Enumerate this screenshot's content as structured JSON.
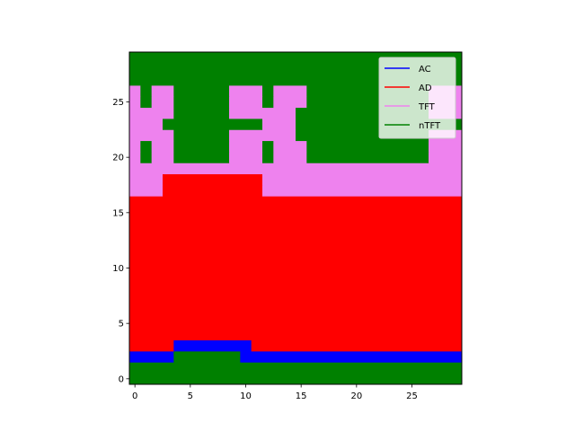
{
  "chart_data": {
    "type": "heatmap",
    "title": "",
    "xlabel": "",
    "ylabel": "",
    "xlim": [
      -0.5,
      29.5
    ],
    "ylim": [
      -0.5,
      29.5
    ],
    "grid": false,
    "legend_position": "top-right",
    "x_ticks": [
      0,
      5,
      10,
      15,
      20,
      25
    ],
    "y_ticks": [
      0,
      5,
      10,
      15,
      20,
      25
    ],
    "legend": [
      {
        "label": "AC",
        "color": "#0000ff"
      },
      {
        "label": "AD",
        "color": "#ff0000"
      },
      {
        "label": "TFT",
        "color": "#ee82ee"
      },
      {
        "label": "nTFT",
        "color": "#008000"
      }
    ],
    "class_colors": {
      "AC": "#0000ff",
      "AD": "#ff0000",
      "TFT": "#ee82ee",
      "nTFT": "#008000"
    },
    "rows": [
      {
        "y": 0,
        "runs": [
          [
            "nTFT",
            30
          ]
        ]
      },
      {
        "y": 1,
        "runs": [
          [
            "nTFT",
            30
          ]
        ]
      },
      {
        "y": 2,
        "runs": [
          [
            "AC",
            4
          ],
          [
            "nTFT",
            6
          ],
          [
            "AC",
            20
          ]
        ]
      },
      {
        "y": 3,
        "runs": [
          [
            "AD",
            4
          ],
          [
            "AC",
            7
          ],
          [
            "AD",
            19
          ]
        ]
      },
      {
        "y": 4,
        "runs": [
          [
            "AD",
            30
          ]
        ]
      },
      {
        "y": 5,
        "runs": [
          [
            "AD",
            30
          ]
        ]
      },
      {
        "y": 6,
        "runs": [
          [
            "AD",
            30
          ]
        ]
      },
      {
        "y": 7,
        "runs": [
          [
            "AD",
            30
          ]
        ]
      },
      {
        "y": 8,
        "runs": [
          [
            "AD",
            30
          ]
        ]
      },
      {
        "y": 9,
        "runs": [
          [
            "AD",
            30
          ]
        ]
      },
      {
        "y": 10,
        "runs": [
          [
            "AD",
            30
          ]
        ]
      },
      {
        "y": 11,
        "runs": [
          [
            "AD",
            30
          ]
        ]
      },
      {
        "y": 12,
        "runs": [
          [
            "AD",
            30
          ]
        ]
      },
      {
        "y": 13,
        "runs": [
          [
            "AD",
            30
          ]
        ]
      },
      {
        "y": 14,
        "runs": [
          [
            "AD",
            30
          ]
        ]
      },
      {
        "y": 15,
        "runs": [
          [
            "AD",
            30
          ]
        ]
      },
      {
        "y": 16,
        "runs": [
          [
            "AD",
            30
          ]
        ]
      },
      {
        "y": 17,
        "runs": [
          [
            "TFT",
            3
          ],
          [
            "AD",
            9
          ],
          [
            "TFT",
            18
          ]
        ]
      },
      {
        "y": 18,
        "runs": [
          [
            "TFT",
            3
          ],
          [
            "AD",
            9
          ],
          [
            "TFT",
            18
          ]
        ]
      },
      {
        "y": 19,
        "runs": [
          [
            "TFT",
            30
          ]
        ]
      },
      {
        "y": 20,
        "runs": [
          [
            "TFT",
            1
          ],
          [
            "nTFT",
            1
          ],
          [
            "TFT",
            2
          ],
          [
            "nTFT",
            5
          ],
          [
            "TFT",
            3
          ],
          [
            "nTFT",
            1
          ],
          [
            "TFT",
            3
          ],
          [
            "nTFT",
            11
          ],
          [
            "TFT",
            3
          ]
        ]
      },
      {
        "y": 21,
        "runs": [
          [
            "TFT",
            1
          ],
          [
            "nTFT",
            1
          ],
          [
            "TFT",
            2
          ],
          [
            "nTFT",
            5
          ],
          [
            "TFT",
            3
          ],
          [
            "nTFT",
            1
          ],
          [
            "TFT",
            3
          ],
          [
            "nTFT",
            11
          ],
          [
            "TFT",
            3
          ]
        ]
      },
      {
        "y": 22,
        "runs": [
          [
            "TFT",
            4
          ],
          [
            "nTFT",
            5
          ],
          [
            "TFT",
            6
          ],
          [
            "nTFT",
            12
          ],
          [
            "TFT",
            3
          ]
        ]
      },
      {
        "y": 23,
        "runs": [
          [
            "TFT",
            3
          ],
          [
            "nTFT",
            9
          ],
          [
            "TFT",
            3
          ],
          [
            "nTFT",
            15
          ]
        ]
      },
      {
        "y": 24,
        "runs": [
          [
            "TFT",
            4
          ],
          [
            "nTFT",
            5
          ],
          [
            "TFT",
            6
          ],
          [
            "nTFT",
            12
          ],
          [
            "TFT",
            3
          ]
        ]
      },
      {
        "y": 25,
        "runs": [
          [
            "TFT",
            1
          ],
          [
            "nTFT",
            1
          ],
          [
            "TFT",
            2
          ],
          [
            "nTFT",
            5
          ],
          [
            "TFT",
            3
          ],
          [
            "nTFT",
            1
          ],
          [
            "TFT",
            3
          ],
          [
            "nTFT",
            11
          ],
          [
            "TFT",
            3
          ]
        ]
      },
      {
        "y": 26,
        "runs": [
          [
            "TFT",
            1
          ],
          [
            "nTFT",
            1
          ],
          [
            "TFT",
            2
          ],
          [
            "nTFT",
            5
          ],
          [
            "TFT",
            3
          ],
          [
            "nTFT",
            1
          ],
          [
            "TFT",
            3
          ],
          [
            "nTFT",
            11
          ],
          [
            "TFT",
            3
          ]
        ]
      },
      {
        "y": 27,
        "runs": [
          [
            "nTFT",
            30
          ]
        ]
      },
      {
        "y": 28,
        "runs": [
          [
            "nTFT",
            30
          ]
        ]
      },
      {
        "y": 29,
        "runs": [
          [
            "nTFT",
            30
          ]
        ]
      }
    ]
  }
}
